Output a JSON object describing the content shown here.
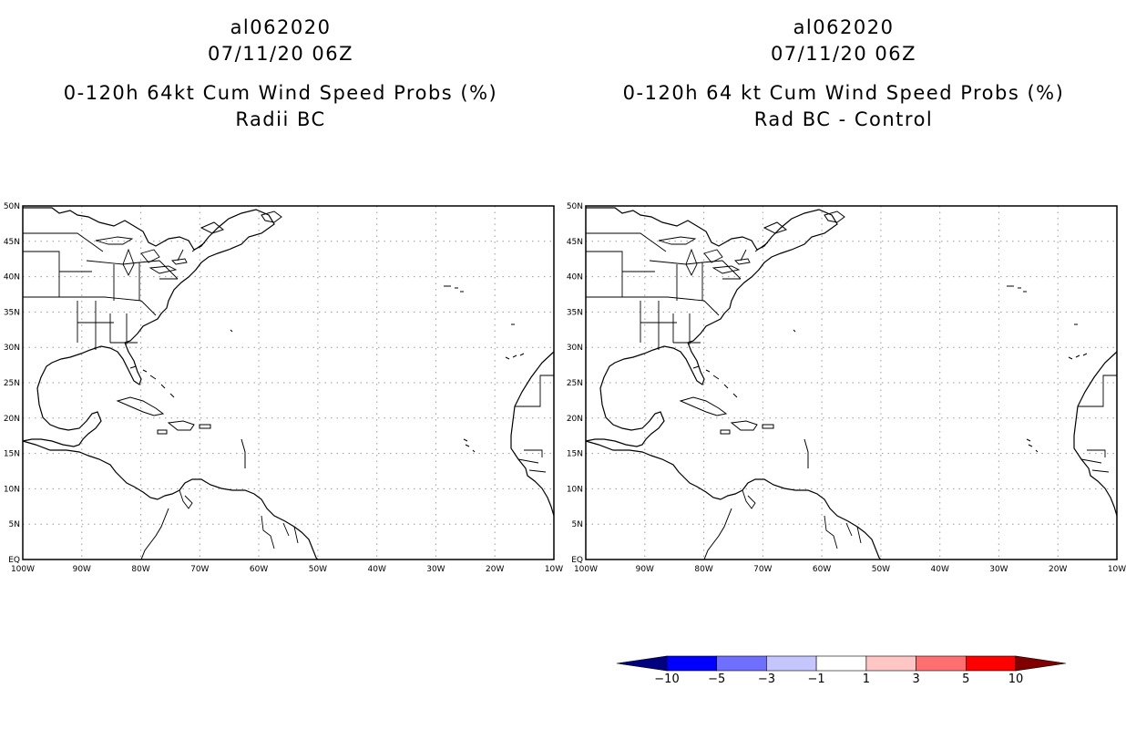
{
  "panels": [
    {
      "title_line1": "al062020",
      "title_line2": "07/11/20 06Z",
      "title_line3": "0-120h 64kt Cum Wind Speed Probs (%)",
      "title_line4": "Radii BC"
    },
    {
      "title_line1": "al062020",
      "title_line2": "07/11/20 06Z",
      "title_line3": "0-120h 64 kt Cum Wind Speed Probs (%)",
      "title_line4": "Rad BC - Control"
    }
  ],
  "map": {
    "lon_labels": [
      "100W",
      "90W",
      "80W",
      "70W",
      "60W",
      "50W",
      "40W",
      "30W",
      "20W",
      "10W"
    ],
    "lat_labels": [
      "EQ",
      "5N",
      "10N",
      "15N",
      "20N",
      "25N",
      "30N",
      "35N",
      "40N",
      "45N",
      "50N"
    ],
    "lon_range": [
      -100,
      -10
    ],
    "lat_range": [
      0,
      50
    ]
  },
  "colorbar": {
    "labels": [
      "-10",
      "-5",
      "-3",
      "-1",
      "1",
      "3",
      "5",
      "10"
    ],
    "colors": [
      "#000080",
      "#0000ff",
      "#6f6fff",
      "#c6c6ff",
      "#ffffff",
      "#ffc6c6",
      "#ff6f6f",
      "#ff0000",
      "#800000"
    ]
  }
}
